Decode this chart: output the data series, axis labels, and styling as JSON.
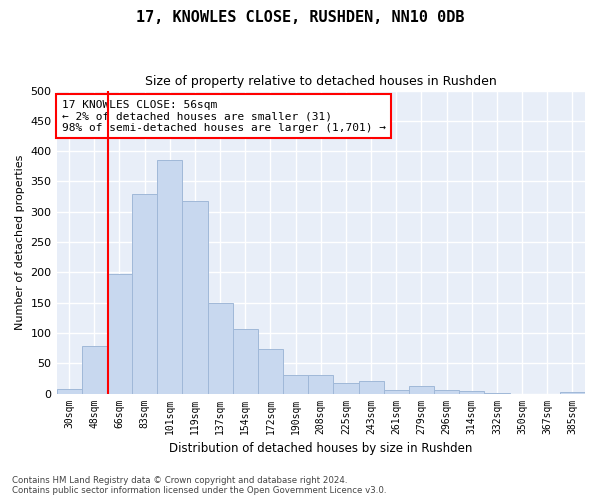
{
  "title": "17, KNOWLES CLOSE, RUSHDEN, NN10 0DB",
  "subtitle": "Size of property relative to detached houses in Rushden",
  "xlabel": "Distribution of detached houses by size in Rushden",
  "ylabel": "Number of detached properties",
  "footer_line1": "Contains HM Land Registry data © Crown copyright and database right 2024.",
  "footer_line2": "Contains public sector information licensed under the Open Government Licence v3.0.",
  "bar_labels": [
    "30sqm",
    "48sqm",
    "66sqm",
    "83sqm",
    "101sqm",
    "119sqm",
    "137sqm",
    "154sqm",
    "172sqm",
    "190sqm",
    "208sqm",
    "225sqm",
    "243sqm",
    "261sqm",
    "279sqm",
    "296sqm",
    "314sqm",
    "332sqm",
    "350sqm",
    "367sqm",
    "385sqm"
  ],
  "bar_values": [
    8,
    78,
    197,
    330,
    385,
    318,
    150,
    107,
    73,
    30,
    30,
    18,
    20,
    6,
    12,
    6,
    4,
    1,
    0,
    0,
    2
  ],
  "bar_color": "#c8d8ef",
  "bar_edge_color": "#a0b8d8",
  "ylim": [
    0,
    500
  ],
  "yticks": [
    0,
    50,
    100,
    150,
    200,
    250,
    300,
    350,
    400,
    450,
    500
  ],
  "annotation_text": "17 KNOWLES CLOSE: 56sqm\n← 2% of detached houses are smaller (31)\n98% of semi-detached houses are larger (1,701) →",
  "annotation_box_color": "white",
  "annotation_box_edgecolor": "red",
  "vline_x_index": 1.55,
  "vline_color": "red",
  "bg_color": "#ffffff",
  "plot_bg_color": "#e8eef8",
  "grid_color": "white",
  "title_fontsize": 11,
  "subtitle_fontsize": 9
}
